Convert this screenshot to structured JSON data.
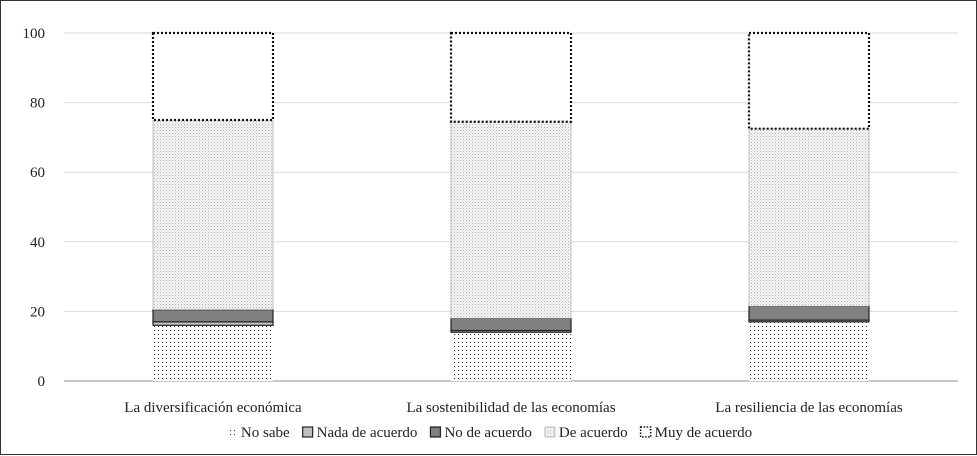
{
  "chart_data": {
    "type": "bar",
    "stacked": true,
    "categories": [
      "La diversificación económica",
      "La sostenibilidad de las economías",
      "La resiliencia de las economías"
    ],
    "series": [
      {
        "name": "No sabe",
        "values": [
          16,
          14,
          17
        ],
        "pattern": "dots-sparse"
      },
      {
        "name": "Nada de acuerdo",
        "values": [
          1,
          0.5,
          0.5
        ],
        "color": "#bfbfbf"
      },
      {
        "name": "No de acuerdo",
        "values": [
          3.5,
          3.5,
          4
        ],
        "color": "#808080"
      },
      {
        "name": "De acuerdo",
        "values": [
          54.5,
          56.5,
          51
        ],
        "pattern": "dots-fine"
      },
      {
        "name": "Muy de acuerdo",
        "values": [
          25,
          25.5,
          27.5
        ],
        "pattern": "white-dotted-outline"
      }
    ],
    "yticks": [
      "0",
      "20",
      "40",
      "60",
      "80",
      "100"
    ],
    "ylim": [
      0,
      100
    ],
    "grid": true,
    "legend_position": "bottom"
  }
}
